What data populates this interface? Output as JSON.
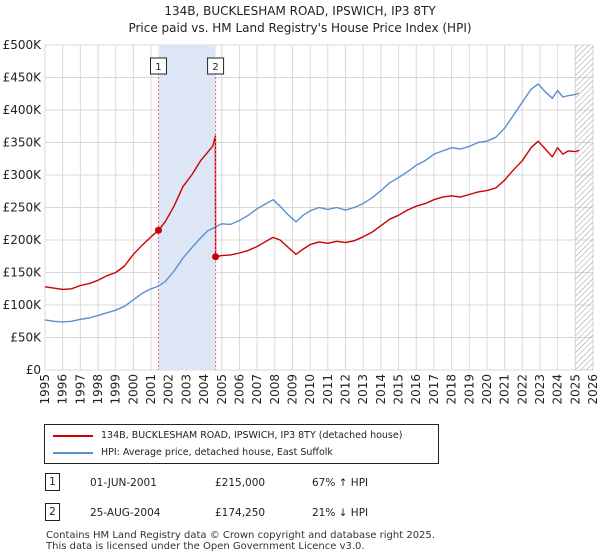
{
  "title_line1": "134B, BUCKLESHAM ROAD, IPSWICH, IP3 8TY",
  "title_line2": "Price paid vs. HM Land Registry's House Price Index (HPI)",
  "colors": {
    "price_line": "#cc0000",
    "hpi_line": "#5b8fd0",
    "shade": "#dde6f5",
    "grid": "#d8d8d8",
    "marker_line": "#e07070"
  },
  "chart_data": {
    "type": "line",
    "title": "134B, BUCKLESHAM ROAD, IPSWICH, IP3 8TY — Price paid vs. HM Land Registry's House Price Index (HPI)",
    "xlim": [
      1995,
      2026
    ],
    "ylim": [
      0,
      500000
    ],
    "x_ticks": [
      "1995",
      "1996",
      "1997",
      "1998",
      "1999",
      "2000",
      "2001",
      "2002",
      "2003",
      "2004",
      "2005",
      "2006",
      "2007",
      "2008",
      "2009",
      "2010",
      "2011",
      "2012",
      "2013",
      "2014",
      "2015",
      "2016",
      "2017",
      "2018",
      "2019",
      "2020",
      "2021",
      "2022",
      "2023",
      "2024",
      "2025",
      "2026"
    ],
    "y_ticks": [
      {
        "value": 0,
        "label": "£0"
      },
      {
        "value": 50000,
        "label": "£50K"
      },
      {
        "value": 100000,
        "label": "£100K"
      },
      {
        "value": 150000,
        "label": "£150K"
      },
      {
        "value": 200000,
        "label": "£200K"
      },
      {
        "value": 250000,
        "label": "£250K"
      },
      {
        "value": 300000,
        "label": "£300K"
      },
      {
        "value": 350000,
        "label": "£350K"
      },
      {
        "value": 400000,
        "label": "£400K"
      },
      {
        "value": 450000,
        "label": "£450K"
      },
      {
        "value": 500000,
        "label": "£500K"
      }
    ],
    "shaded_period": [
      2001.42,
      2004.65
    ],
    "future_hatch_from": 2025.0,
    "series": [
      {
        "name": "134B, BUCKLESHAM ROAD, IPSWICH, IP3 8TY (detached house)",
        "color": "#cc0000",
        "x": [
          1995.0,
          1995.5,
          1996.0,
          1996.5,
          1997.0,
          1997.5,
          1998.0,
          1998.5,
          1999.0,
          1999.5,
          2000.0,
          2000.5,
          2001.0,
          2001.42,
          2001.8,
          2002.3,
          2002.8,
          2003.3,
          2003.8,
          2004.2,
          2004.5,
          2004.64,
          2004.65,
          2005.0,
          2005.5,
          2006.0,
          2006.5,
          2007.0,
          2007.5,
          2007.9,
          2008.3,
          2008.7,
          2009.2,
          2009.6,
          2010.0,
          2010.5,
          2011.0,
          2011.5,
          2012.0,
          2012.5,
          2013.0,
          2013.5,
          2014.0,
          2014.5,
          2015.0,
          2015.5,
          2016.0,
          2016.5,
          2017.0,
          2017.5,
          2018.0,
          2018.5,
          2019.0,
          2019.5,
          2020.0,
          2020.5,
          2021.0,
          2021.5,
          2022.0,
          2022.5,
          2022.9,
          2023.3,
          2023.7,
          2024.0,
          2024.3,
          2024.6,
          2025.0,
          2025.2
        ],
        "y": [
          128000,
          126000,
          124000,
          125000,
          130000,
          133000,
          138000,
          145000,
          150000,
          160000,
          178000,
          192000,
          205000,
          215000,
          228000,
          252000,
          282000,
          300000,
          322000,
          335000,
          345000,
          360000,
          174250,
          176000,
          177000,
          180000,
          184000,
          190000,
          198000,
          204000,
          200000,
          190000,
          178000,
          186000,
          193000,
          197000,
          195000,
          198000,
          196000,
          199000,
          205000,
          212000,
          222000,
          232000,
          238000,
          246000,
          252000,
          256000,
          262000,
          266000,
          268000,
          266000,
          270000,
          274000,
          276000,
          280000,
          292000,
          308000,
          322000,
          342000,
          352000,
          340000,
          328000,
          342000,
          332000,
          337000,
          336000,
          338000
        ]
      },
      {
        "name": "HPI: Average price, detached house, East Suffolk",
        "color": "#5b8fd0",
        "x": [
          1995.0,
          1995.5,
          1996.0,
          1996.5,
          1997.0,
          1997.5,
          1998.0,
          1998.5,
          1999.0,
          1999.5,
          2000.0,
          2000.5,
          2001.0,
          2001.42,
          2001.8,
          2002.3,
          2002.8,
          2003.3,
          2003.8,
          2004.2,
          2004.65,
          2005.0,
          2005.5,
          2006.0,
          2006.5,
          2007.0,
          2007.5,
          2007.9,
          2008.3,
          2008.7,
          2009.2,
          2009.6,
          2010.0,
          2010.5,
          2011.0,
          2011.5,
          2012.0,
          2012.5,
          2013.0,
          2013.5,
          2014.0,
          2014.5,
          2015.0,
          2015.5,
          2016.0,
          2016.5,
          2017.0,
          2017.5,
          2018.0,
          2018.5,
          2019.0,
          2019.5,
          2020.0,
          2020.5,
          2021.0,
          2021.5,
          2022.0,
          2022.5,
          2022.9,
          2023.3,
          2023.7,
          2024.0,
          2024.3,
          2024.6,
          2025.0,
          2025.2
        ],
        "y": [
          77000,
          75000,
          74000,
          75000,
          78000,
          80000,
          84000,
          88000,
          92000,
          98000,
          108000,
          118000,
          125000,
          129000,
          136000,
          152000,
          172000,
          188000,
          203000,
          214000,
          220000,
          225000,
          224000,
          230000,
          238000,
          248000,
          256000,
          262000,
          252000,
          240000,
          228000,
          238000,
          245000,
          250000,
          247000,
          250000,
          246000,
          250000,
          256000,
          265000,
          276000,
          288000,
          296000,
          305000,
          315000,
          322000,
          332000,
          337000,
          342000,
          340000,
          344000,
          350000,
          352000,
          358000,
          372000,
          392000,
          412000,
          432000,
          440000,
          428000,
          418000,
          430000,
          420000,
          422000,
          424000,
          426000
        ]
      }
    ],
    "transactions": [
      {
        "num": "1",
        "x": 2001.42,
        "y": 215000
      },
      {
        "num": "2",
        "x": 2004.65,
        "y": 174250
      }
    ]
  },
  "legend": {
    "price_label": "134B, BUCKLESHAM ROAD, IPSWICH, IP3 8TY (detached house)",
    "hpi_label": "HPI: Average price, detached house, East Suffolk"
  },
  "transactions_table": [
    {
      "num": "1",
      "date": "01-JUN-2001",
      "price": "£215,000",
      "hpi": "67% ↑ HPI"
    },
    {
      "num": "2",
      "date": "25-AUG-2004",
      "price": "£174,250",
      "hpi": "21% ↓ HPI"
    }
  ],
  "footer_line1": "Contains HM Land Registry data © Crown copyright and database right 2025.",
  "footer_line2": "This data is licensed under the Open Government Licence v3.0."
}
